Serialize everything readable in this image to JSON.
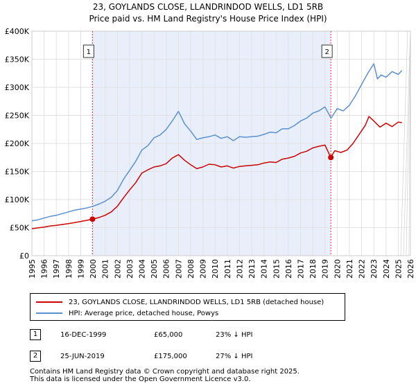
{
  "chart_data": {
    "type": "line",
    "title": "23, GOYLANDS CLOSE, LLANDRINDOD WELLS, LD1 5RB",
    "subtitle": "Price paid vs. HM Land Registry's House Price Index (HPI)",
    "xlabel": "",
    "ylabel": "",
    "xlim": [
      1995,
      2026
    ],
    "ylim": [
      0,
      400000
    ],
    "x_ticks": [
      "1995",
      "1996",
      "1997",
      "1998",
      "1999",
      "2000",
      "2001",
      "2002",
      "2003",
      "2004",
      "2005",
      "2006",
      "2007",
      "2008",
      "2009",
      "2010",
      "2011",
      "2012",
      "2013",
      "2014",
      "2015",
      "2016",
      "2017",
      "2018",
      "2019",
      "2020",
      "2021",
      "2022",
      "2023",
      "2024",
      "2025",
      "2026"
    ],
    "y_ticks": [
      {
        "value": 0,
        "label": "£0"
      },
      {
        "value": 50000,
        "label": "£50K"
      },
      {
        "value": 100000,
        "label": "£100K"
      },
      {
        "value": 150000,
        "label": "£150K"
      },
      {
        "value": 200000,
        "label": "£200K"
      },
      {
        "value": 250000,
        "label": "£250K"
      },
      {
        "value": 300000,
        "label": "£300K"
      },
      {
        "value": 350000,
        "label": "£350K"
      },
      {
        "value": 400000,
        "label": "£400K"
      }
    ],
    "grid": true,
    "shaded_range": [
      1999.96,
      2019.48
    ],
    "projection_start": 2025.2,
    "series": [
      {
        "name": "23, GOYLANDS CLOSE, LLANDRINDOD WELLS, LD1 5RB (detached house)",
        "color": "#cc0000",
        "x": [
          1995,
          1995.5,
          1996,
          1996.5,
          1997,
          1997.5,
          1998,
          1998.5,
          1999,
          1999.5,
          1999.96,
          2000.5,
          2001,
          2001.5,
          2002,
          2002.5,
          2003,
          2003.5,
          2004,
          2004.5,
          2005,
          2005.5,
          2006,
          2006.5,
          2007,
          2007.5,
          2008,
          2008.5,
          2009,
          2009.5,
          2010,
          2010.5,
          2011,
          2011.5,
          2012,
          2012.5,
          2013,
          2013.5,
          2014,
          2014.5,
          2015,
          2015.5,
          2016,
          2016.5,
          2017,
          2017.5,
          2018,
          2018.5,
          2019,
          2019.48,
          2019.8,
          2020.3,
          2020.8,
          2021.3,
          2021.8,
          2022.3,
          2022.6,
          2023,
          2023.5,
          2024,
          2024.5,
          2025,
          2025.3
        ],
        "values": [
          48000,
          49500,
          51000,
          53000,
          54000,
          55500,
          57000,
          59000,
          61000,
          63000,
          65000,
          68000,
          72000,
          78000,
          88000,
          103000,
          117000,
          130000,
          147000,
          153000,
          158000,
          160000,
          164000,
          174000,
          180000,
          170000,
          162000,
          155000,
          158000,
          163000,
          162000,
          158000,
          160000,
          156000,
          159000,
          160000,
          161000,
          162000,
          165000,
          167000,
          166000,
          172000,
          174000,
          177000,
          183000,
          186000,
          192000,
          195000,
          197000,
          175000,
          187000,
          184000,
          188000,
          200000,
          216000,
          232000,
          248000,
          240000,
          229000,
          236000,
          230000,
          238000,
          237000
        ]
      },
      {
        "name": "HPI: Average price, detached house, Powys",
        "color": "#5b8fd0",
        "x": [
          1995,
          1995.5,
          1996,
          1996.5,
          1997,
          1997.5,
          1998,
          1998.5,
          1999,
          1999.5,
          2000,
          2000.5,
          2001,
          2001.5,
          2002,
          2002.5,
          2003,
          2003.5,
          2004,
          2004.5,
          2005,
          2005.5,
          2006,
          2006.5,
          2007,
          2007.5,
          2008,
          2008.5,
          2009,
          2009.5,
          2010,
          2010.5,
          2011,
          2011.5,
          2012,
          2012.5,
          2013,
          2013.5,
          2014,
          2014.5,
          2015,
          2015.5,
          2016,
          2016.5,
          2017,
          2017.5,
          2018,
          2018.5,
          2019,
          2019.5,
          2020,
          2020.5,
          2021,
          2021.5,
          2022,
          2022.5,
          2023,
          2023.3,
          2023.6,
          2024,
          2024.5,
          2025,
          2025.3
        ],
        "values": [
          62000,
          64000,
          67000,
          70000,
          72000,
          75000,
          78000,
          81000,
          83000,
          85000,
          88000,
          92000,
          97000,
          104000,
          116000,
          136000,
          152000,
          168000,
          188000,
          196000,
          210000,
          215000,
          225000,
          240000,
          257000,
          235000,
          222000,
          207000,
          210000,
          212000,
          215000,
          209000,
          212000,
          205000,
          212000,
          211000,
          212000,
          213000,
          216000,
          220000,
          219000,
          226000,
          226000,
          232000,
          240000,
          245000,
          254000,
          258000,
          265000,
          245000,
          262000,
          258000,
          268000,
          285000,
          305000,
          325000,
          342000,
          315000,
          322000,
          318000,
          328000,
          323000,
          330000
        ]
      }
    ],
    "markers": [
      {
        "label": "1",
        "x": 1999.96,
        "y": 65000
      },
      {
        "label": "2",
        "x": 2019.48,
        "y": 175000
      }
    ]
  },
  "legend": {
    "property_label": "23, GOYLANDS CLOSE, LLANDRINDOD WELLS, LD1 5RB (detached house)",
    "hpi_label": "HPI: Average price, detached house, Powys",
    "property_color": "#cc0000",
    "hpi_color": "#5b8fd0"
  },
  "transactions": [
    {
      "num": "1",
      "date": "16-DEC-1999",
      "price": "£65,000",
      "delta": "23% ↓ HPI"
    },
    {
      "num": "2",
      "date": "25-JUN-2019",
      "price": "£175,000",
      "delta": "27% ↓ HPI"
    }
  ],
  "footer": {
    "line1": "Contains HM Land Registry data © Crown copyright and database right 2025.",
    "line2": "This data is licensed under the Open Government Licence v3.0."
  }
}
